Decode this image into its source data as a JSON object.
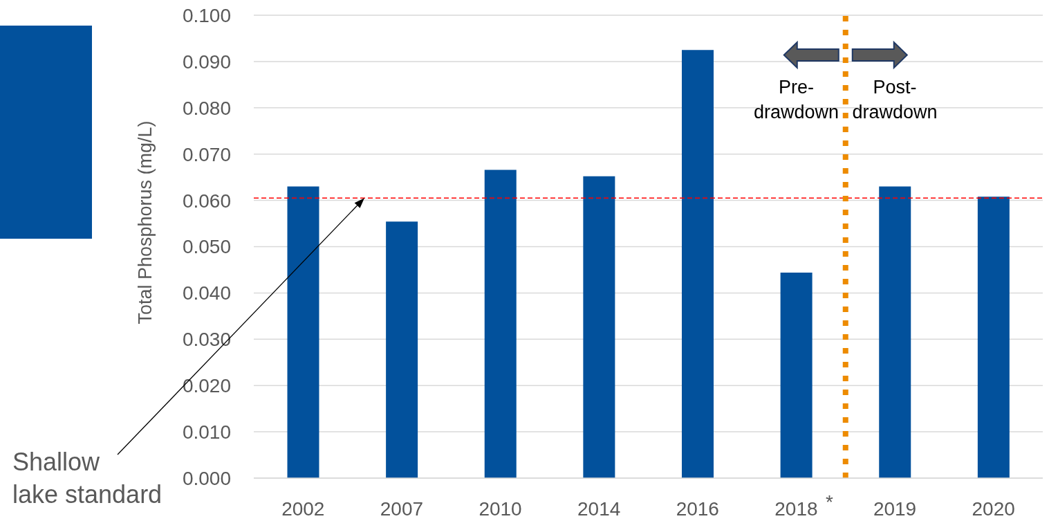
{
  "chart_data": {
    "type": "bar",
    "ylabel": "Total Phosphorus (mg/L)",
    "categories": [
      "2002",
      "2007",
      "2010",
      "2014",
      "2016",
      "2018",
      "2019",
      "2020"
    ],
    "values": [
      0.063,
      0.0554,
      0.0666,
      0.0652,
      0.0925,
      0.0444,
      0.063,
      0.0608
    ],
    "color": "#02519c",
    "ylim": [
      0,
      0.1
    ],
    "yticks": [
      {
        "value": 0,
        "label": "0.000"
      },
      {
        "value": 0.01,
        "label": "0.010"
      },
      {
        "value": 0.02,
        "label": "0.020"
      },
      {
        "value": 0.03,
        "label": "0.030"
      },
      {
        "value": 0.04,
        "label": "0.040"
      },
      {
        "value": 0.05,
        "label": "0.050"
      },
      {
        "value": 0.06,
        "label": "0.060"
      },
      {
        "value": 0.07,
        "label": "0.070"
      },
      {
        "value": 0.08,
        "label": "0.080"
      },
      {
        "value": 0.09,
        "label": "0.090"
      },
      {
        "value": 0.1,
        "label": "0.100"
      }
    ],
    "grid": "y",
    "ref_lines": [
      {
        "axis": "y",
        "value": 0.0605,
        "color": "#ff0000",
        "line_style": "dashed"
      },
      {
        "axis": "x",
        "value": "2019",
        "color": "#ed8b00",
        "line_style": "dotted"
      }
    ],
    "annotations": [
      "Pre-drawdown",
      "Post-drawdown",
      "*",
      "Shallow lake standard"
    ]
  }
}
